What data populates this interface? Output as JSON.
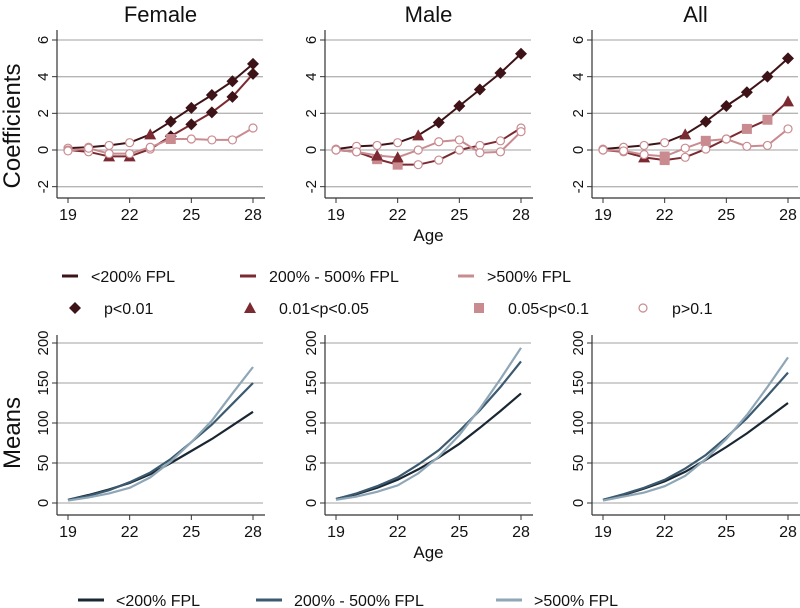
{
  "chart_data": [
    {
      "type": "line",
      "panel": "top",
      "ylabel": "Coefficients",
      "xlabel": "Age",
      "ylim": [
        -2.5,
        6.5
      ],
      "yticks": [
        -2,
        0,
        2,
        4,
        6
      ],
      "xticks": [
        19,
        22,
        25,
        28
      ],
      "x": [
        19,
        20,
        21,
        22,
        23,
        24,
        25,
        26,
        27,
        28
      ],
      "panels": [
        {
          "title": "Female",
          "show_xlabel": false,
          "series": [
            {
              "name": "<200% FPL",
              "values": [
                0.1,
                0.15,
                0.25,
                0.4,
                0.85,
                1.55,
                2.3,
                3.0,
                3.75,
                4.7
              ],
              "markers": [
                "O",
                "O",
                "O",
                "O",
                "T",
                "D",
                "D",
                "D",
                "D",
                "D"
              ]
            },
            {
              "name": "200% - 500% FPL",
              "values": [
                0.0,
                -0.1,
                -0.35,
                -0.35,
                0.05,
                0.75,
                1.4,
                2.05,
                2.9,
                4.15
              ],
              "markers": [
                "O",
                "O",
                "T",
                "T",
                "O",
                "D",
                "D",
                "D",
                "D",
                "D"
              ]
            },
            {
              "name": ">500% FPL",
              "values": [
                -0.05,
                0.1,
                -0.2,
                -0.2,
                0.15,
                0.6,
                0.6,
                0.55,
                0.55,
                1.2
              ],
              "markers": [
                "O",
                "O",
                "O",
                "O",
                "O",
                "S",
                "O",
                "O",
                "O",
                "O"
              ]
            }
          ]
        },
        {
          "title": "Male",
          "show_xlabel": true,
          "series": [
            {
              "name": "<200% FPL",
              "values": [
                0.05,
                0.2,
                0.25,
                0.4,
                0.8,
                1.5,
                2.4,
                3.3,
                4.2,
                5.25
              ],
              "markers": [
                "O",
                "O",
                "O",
                "O",
                "T",
                "D",
                "D",
                "D",
                "D",
                "D"
              ]
            },
            {
              "name": "200% - 500% FPL",
              "values": [
                0.0,
                -0.1,
                -0.5,
                -0.8,
                -0.8,
                -0.55,
                0.0,
                0.25,
                0.5,
                1.2
              ],
              "markers": [
                "O",
                "O",
                "S",
                "S",
                "O",
                "O",
                "O",
                "O",
                "O",
                "O"
              ]
            },
            {
              "name": ">500% FPL",
              "values": [
                0.0,
                -0.1,
                -0.3,
                -0.4,
                0.0,
                0.45,
                0.55,
                -0.15,
                -0.1,
                1.0
              ],
              "markers": [
                "O",
                "O",
                "T",
                "T",
                "O",
                "O",
                "O",
                "O",
                "O",
                "O"
              ]
            }
          ]
        },
        {
          "title": "All",
          "show_xlabel": false,
          "series": [
            {
              "name": "<200% FPL",
              "values": [
                0.05,
                0.15,
                0.25,
                0.4,
                0.85,
                1.55,
                2.4,
                3.15,
                4.0,
                5.0
              ],
              "markers": [
                "O",
                "O",
                "O",
                "O",
                "T",
                "D",
                "D",
                "D",
                "D",
                "D"
              ]
            },
            {
              "name": "200% - 500% FPL",
              "values": [
                0.0,
                -0.1,
                -0.4,
                -0.55,
                -0.4,
                0.05,
                0.6,
                1.15,
                1.65,
                2.65
              ],
              "markers": [
                "O",
                "O",
                "T",
                "S",
                "O",
                "O",
                "O",
                "S",
                "S",
                "T"
              ]
            },
            {
              "name": ">500% FPL",
              "values": [
                0.0,
                -0.05,
                -0.25,
                -0.35,
                0.1,
                0.5,
                0.6,
                0.2,
                0.25,
                1.15
              ],
              "markers": [
                "O",
                "O",
                "O",
                "S",
                "O",
                "S",
                "O",
                "O",
                "O",
                "O"
              ]
            }
          ]
        }
      ]
    },
    {
      "type": "line",
      "panel": "bottom",
      "ylabel": "Means",
      "xlabel": "Age",
      "ylim": [
        -10,
        210
      ],
      "yticks": [
        0,
        50,
        100,
        150,
        200
      ],
      "xticks": [
        19,
        22,
        25,
        28
      ],
      "x": [
        19,
        20,
        21,
        22,
        23,
        24,
        25,
        26,
        27,
        28
      ],
      "panels": [
        {
          "title": "Female",
          "show_xlabel": false,
          "series": [
            {
              "name": "<200% FPL",
              "values": [
                4,
                10,
                17,
                25,
                36,
                50,
                65,
                80,
                97,
                114
              ]
            },
            {
              "name": "200% - 500% FPL",
              "values": [
                4,
                9,
                16,
                26,
                38,
                55,
                76,
                98,
                124,
                150
              ]
            },
            {
              "name": ">500% FPL",
              "values": [
                3,
                7,
                12,
                19,
                32,
                52,
                76,
                103,
                137,
                170
              ]
            }
          ]
        },
        {
          "title": "Male",
          "show_xlabel": true,
          "series": [
            {
              "name": "<200% FPL",
              "values": [
                5,
                11,
                19,
                29,
                42,
                57,
                74,
                94,
                115,
                137
              ]
            },
            {
              "name": "200% - 500% FPL",
              "values": [
                5,
                12,
                21,
                32,
                48,
                66,
                90,
                116,
                145,
                177
              ]
            },
            {
              "name": ">500% FPL",
              "values": [
                4,
                8,
                14,
                22,
                37,
                58,
                85,
                118,
                155,
                194
              ]
            }
          ]
        },
        {
          "title": "All",
          "show_xlabel": false,
          "series": [
            {
              "name": "<200% FPL",
              "values": [
                4,
                10,
                18,
                27,
                39,
                54,
                70,
                87,
                106,
                125
              ]
            },
            {
              "name": "200% - 500% FPL",
              "values": [
                4,
                11,
                19,
                29,
                43,
                60,
                82,
                106,
                134,
                163
              ]
            },
            {
              "name": ">500% FPL",
              "values": [
                3,
                8,
                13,
                21,
                34,
                55,
                80,
                110,
                145,
                182
              ]
            }
          ]
        }
      ]
    }
  ],
  "legend_top": {
    "lines": [
      "<200% FPL",
      "200% - 500% FPL",
      ">500% FPL"
    ],
    "markers": [
      "p<0.01",
      "0.01<p<0.05",
      "0.05<p<0.1",
      "p>0.1"
    ]
  },
  "legend_bottom": {
    "lines": [
      "<200% FPL",
      "200% - 500% FPL",
      ">500% FPL"
    ]
  },
  "colors": {
    "coef": [
      "#3d1318",
      "#7b2a31",
      "#c98b90"
    ],
    "marker_D": "#3d1318",
    "marker_T": "#7b2a31",
    "marker_S": "#c98b90",
    "marker_O": "#c98b90",
    "means": [
      "#1a2733",
      "#3b5a70",
      "#8ea6b6"
    ]
  }
}
